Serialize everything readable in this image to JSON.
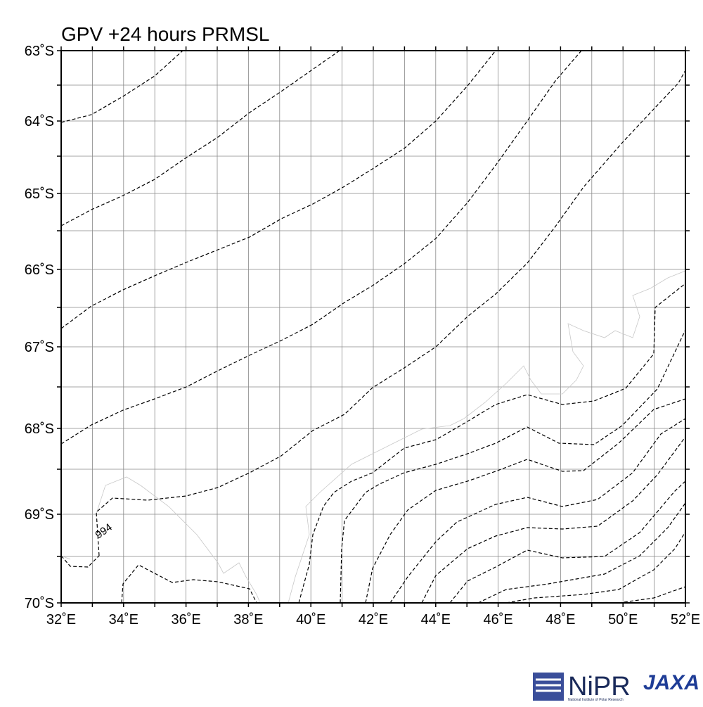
{
  "title": "GPV +24 hours PRMSL",
  "map": {
    "lat_labels": [
      "63˚S",
      "64˚S",
      "65˚S",
      "66˚S",
      "67˚S",
      "68˚S",
      "69˚S",
      "70˚S"
    ],
    "lon_labels": [
      "32˚E",
      "34˚E",
      "36˚E",
      "38˚E",
      "40˚E",
      "42˚E",
      "44˚E",
      "46˚E",
      "48˚E",
      "50˚E",
      "52˚E"
    ],
    "contour_label": "994"
  },
  "logos": {
    "nipr": "NiPR",
    "nipr_caption": "National Institute of Polar Research",
    "jaxa": "JAXA"
  }
}
